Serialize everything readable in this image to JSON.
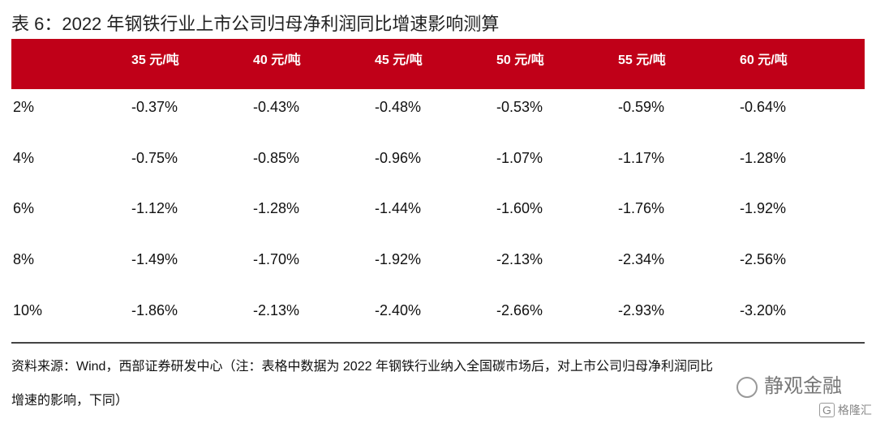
{
  "header": {
    "title": "表 6：2022 年钢铁行业上市公司归母净利润同比增速影响测算"
  },
  "table": {
    "columns": [
      "35 元/吨",
      "40 元/吨",
      "45 元/吨",
      "50 元/吨",
      "55 元/吨",
      "60 元/吨"
    ],
    "rows": [
      {
        "label": "2%",
        "values": [
          "-0.37%",
          "-0.43%",
          "-0.48%",
          "-0.53%",
          "-0.59%",
          "-0.64%"
        ]
      },
      {
        "label": "4%",
        "values": [
          "-0.75%",
          "-0.85%",
          "-0.96%",
          "-1.07%",
          "-1.17%",
          "-1.28%"
        ]
      },
      {
        "label": "6%",
        "values": [
          "-1.12%",
          "-1.28%",
          "-1.44%",
          "-1.60%",
          "-1.76%",
          "-1.92%"
        ]
      },
      {
        "label": "8%",
        "values": [
          "-1.49%",
          "-1.70%",
          "-1.92%",
          "-2.13%",
          "-2.34%",
          "-2.56%"
        ]
      },
      {
        "label": "10%",
        "values": [
          "-1.86%",
          "-2.13%",
          "-2.40%",
          "-2.66%",
          "-2.93%",
          "-3.20%"
        ]
      }
    ]
  },
  "source": {
    "lines": [
      "资料来源：Wind，西部证券研发中心（注：表格中数据为 2022 年钢铁行业纳入全国碳市场后，对上市公司归母净利润同比",
      "增速的影响，下同）"
    ]
  },
  "watermark": {
    "account": "静观金融",
    "brand": "格隆汇"
  }
}
